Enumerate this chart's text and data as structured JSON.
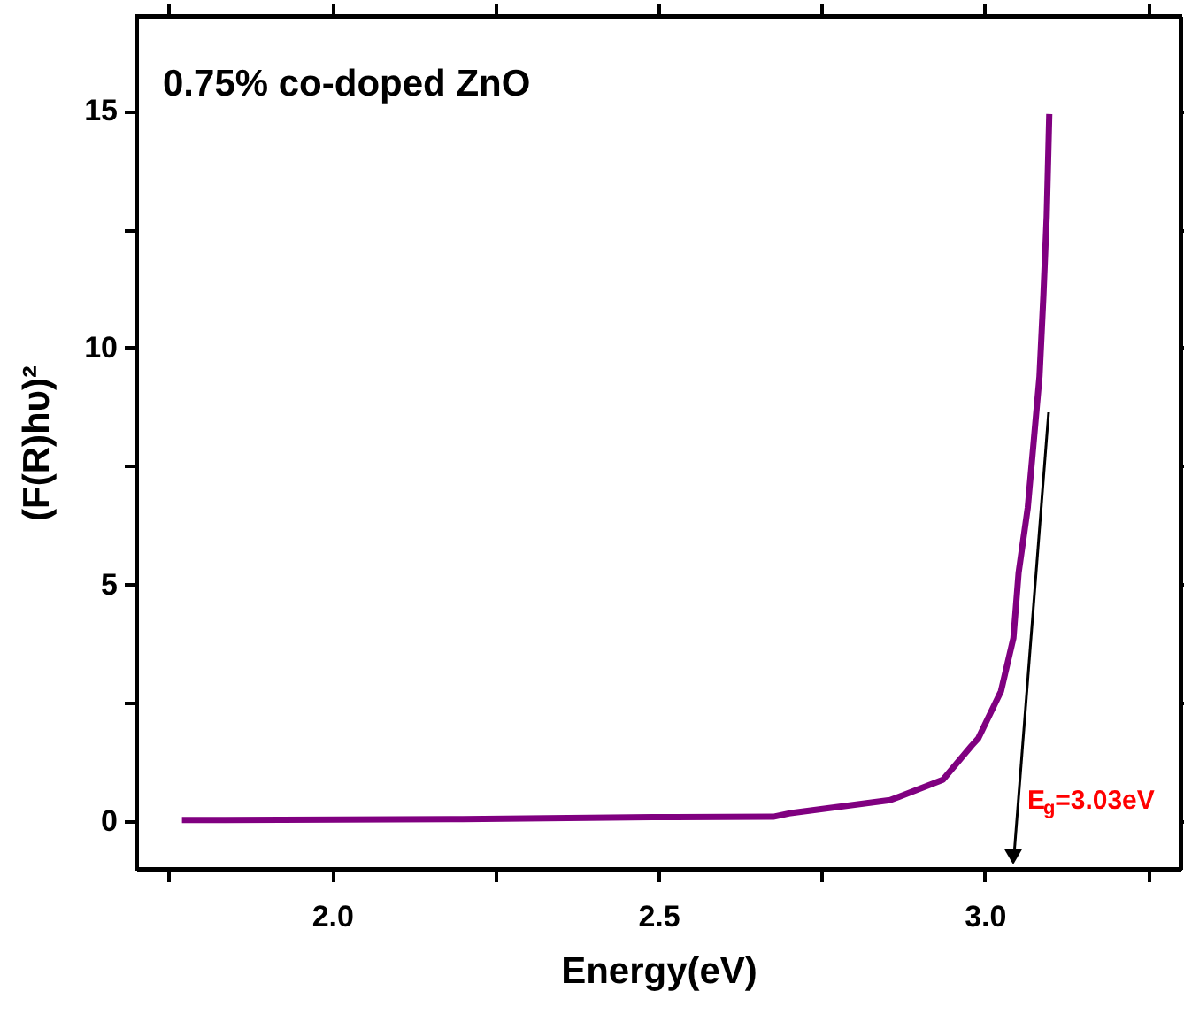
{
  "chart_data": {
    "type": "line",
    "title": "0.75% co-doped ZnO",
    "xlabel": "Energy(eV)",
    "ylabel": "(F(R)hυ)²",
    "xlim": [
      1.7,
      3.3
    ],
    "ylim": [
      -1,
      17
    ],
    "xticks": [
      {
        "value": 1.75,
        "label": null
      },
      {
        "value": 2,
        "label": "2.0"
      },
      {
        "value": 2.25,
        "label": null
      },
      {
        "value": 2.5,
        "label": "2.5"
      },
      {
        "value": 2.75,
        "label": null
      },
      {
        "value": 3,
        "label": "3.0"
      },
      {
        "value": 3.25,
        "label": null
      }
    ],
    "yticks": [
      0,
      {
        "value": 2.5,
        "label": null
      },
      5,
      {
        "value": 7.5,
        "label": null
      },
      10,
      {
        "value": 12.5,
        "label": null
      },
      15
    ],
    "grid": false,
    "marker": "none",
    "line_style": "solid",
    "series": [
      {
        "color": "#800080",
        "x": [
          1.77,
          2.2,
          2.49,
          2.676,
          2.7,
          2.855,
          2.936,
          2.98,
          2.99,
          3.025,
          3.044,
          3.052,
          3.066,
          3.075,
          3.084,
          3.09,
          3.095,
          3.099
        ],
        "values": [
          0.03,
          0.05,
          0.09,
          0.1,
          0.17,
          0.45,
          0.88,
          1.6,
          1.75,
          2.75,
          3.87,
          5.25,
          6.62,
          8.0,
          9.39,
          11.1,
          12.76,
          14.93
        ]
      }
    ],
    "annotations": [
      "E$_{g}$=3.03eV"
    ]
  }
}
